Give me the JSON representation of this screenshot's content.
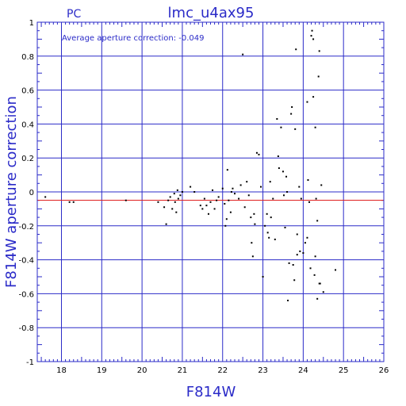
{
  "chart_data": {
    "type": "scatter",
    "title": "lmc_u4ax95",
    "corner_label": "PC",
    "annotation": "Average aperture correction: -0.049",
    "xlabel": "F814W",
    "ylabel": "F814W aperture correction",
    "xlim": [
      17.4,
      26
    ],
    "ylim": [
      -1,
      1
    ],
    "x_ticks": [
      18,
      19,
      20,
      21,
      22,
      23,
      24,
      25,
      26
    ],
    "y_ticks": [
      -1,
      -0.8,
      -0.6,
      -0.4,
      -0.2,
      0,
      0.2,
      0.4,
      0.6,
      0.8,
      1
    ],
    "x_tick_labels": [
      "18",
      "19",
      "20",
      "21",
      "22",
      "23",
      "24",
      "25",
      "26"
    ],
    "y_tick_labels": [
      "-1",
      "-0.8",
      "-0.6",
      "-0.4",
      "-0.2",
      "0",
      "0.2",
      "0.4",
      "0.6",
      "0.8",
      "1"
    ],
    "grid": true,
    "reference_line_y": -0.049,
    "colors": {
      "axes": "#2b2bc8",
      "grid": "#2b2bc8",
      "reference_line": "#e02020",
      "points": "#000000"
    },
    "points": [
      [
        17.6,
        -0.03
      ],
      [
        18.2,
        -0.06
      ],
      [
        18.3,
        -0.06
      ],
      [
        19.6,
        -0.05
      ],
      [
        20.4,
        -0.06
      ],
      [
        20.55,
        -0.09
      ],
      [
        20.6,
        -0.19
      ],
      [
        20.65,
        -0.05
      ],
      [
        20.7,
        -0.03
      ],
      [
        20.75,
        -0.1
      ],
      [
        20.8,
        -0.01
      ],
      [
        20.82,
        -0.06
      ],
      [
        20.85,
        -0.12
      ],
      [
        20.88,
        0.01
      ],
      [
        20.9,
        -0.04
      ],
      [
        20.95,
        -0.02
      ],
      [
        21.0,
        0.0
      ],
      [
        21.2,
        0.03
      ],
      [
        21.3,
        0.0
      ],
      [
        21.45,
        -0.08
      ],
      [
        21.5,
        -0.1
      ],
      [
        21.55,
        -0.04
      ],
      [
        21.6,
        -0.08
      ],
      [
        21.65,
        -0.13
      ],
      [
        21.7,
        -0.06
      ],
      [
        21.75,
        0.01
      ],
      [
        21.8,
        -0.1
      ],
      [
        21.85,
        -0.05
      ],
      [
        21.9,
        -0.03
      ],
      [
        22.0,
        0.02
      ],
      [
        22.05,
        -0.07
      ],
      [
        22.07,
        -0.2
      ],
      [
        22.1,
        -0.16
      ],
      [
        22.12,
        0.13
      ],
      [
        22.15,
        -0.05
      ],
      [
        22.2,
        -0.12
      ],
      [
        22.22,
        0.0
      ],
      [
        22.25,
        0.02
      ],
      [
        22.3,
        -0.01
      ],
      [
        22.4,
        -0.04
      ],
      [
        22.45,
        0.04
      ],
      [
        22.5,
        0.81
      ],
      [
        22.55,
        -0.09
      ],
      [
        22.6,
        0.06
      ],
      [
        22.65,
        -0.02
      ],
      [
        22.7,
        -0.15
      ],
      [
        22.72,
        -0.3
      ],
      [
        22.75,
        -0.38
      ],
      [
        22.78,
        -0.13
      ],
      [
        22.8,
        -0.19
      ],
      [
        22.85,
        0.23
      ],
      [
        22.9,
        0.22
      ],
      [
        22.95,
        0.03
      ],
      [
        23.0,
        -0.5
      ],
      [
        23.05,
        -0.2
      ],
      [
        23.1,
        -0.13
      ],
      [
        23.12,
        -0.24
      ],
      [
        23.15,
        -0.27
      ],
      [
        23.18,
        0.06
      ],
      [
        23.2,
        -0.15
      ],
      [
        23.25,
        -0.04
      ],
      [
        23.3,
        -0.28
      ],
      [
        23.35,
        0.43
      ],
      [
        23.38,
        0.21
      ],
      [
        23.4,
        0.14
      ],
      [
        23.45,
        0.38
      ],
      [
        23.5,
        0.12
      ],
      [
        23.52,
        -0.02
      ],
      [
        23.55,
        -0.21
      ],
      [
        23.58,
        0.09
      ],
      [
        23.6,
        0.0
      ],
      [
        23.62,
        -0.64
      ],
      [
        23.65,
        -0.42
      ],
      [
        23.7,
        0.46
      ],
      [
        23.72,
        0.5
      ],
      [
        23.75,
        -0.43
      ],
      [
        23.78,
        -0.52
      ],
      [
        23.8,
        0.37
      ],
      [
        23.82,
        0.84
      ],
      [
        23.85,
        -0.25
      ],
      [
        23.9,
        0.03
      ],
      [
        23.92,
        -0.35
      ],
      [
        23.95,
        -0.04
      ],
      [
        24.0,
        -0.36
      ],
      [
        24.05,
        -0.3
      ],
      [
        24.1,
        -0.27
      ],
      [
        24.12,
        0.07
      ],
      [
        24.15,
        -0.06
      ],
      [
        24.18,
        -0.45
      ],
      [
        24.2,
        0.92
      ],
      [
        24.22,
        0.95
      ],
      [
        24.25,
        0.56
      ],
      [
        24.28,
        -0.49
      ],
      [
        24.3,
        0.38
      ],
      [
        24.32,
        -0.04
      ],
      [
        24.35,
        -0.63
      ],
      [
        24.38,
        0.68
      ],
      [
        24.4,
        0.83
      ],
      [
        24.42,
        -0.54
      ],
      [
        24.45,
        0.04
      ],
      [
        24.5,
        -0.59
      ],
      [
        24.8,
        -0.46
      ],
      [
        24.1,
        0.53
      ],
      [
        24.25,
        0.9
      ],
      [
        24.3,
        -0.38
      ],
      [
        24.4,
        -0.54
      ],
      [
        23.85,
        -0.37
      ],
      [
        24.35,
        -0.17
      ]
    ]
  }
}
